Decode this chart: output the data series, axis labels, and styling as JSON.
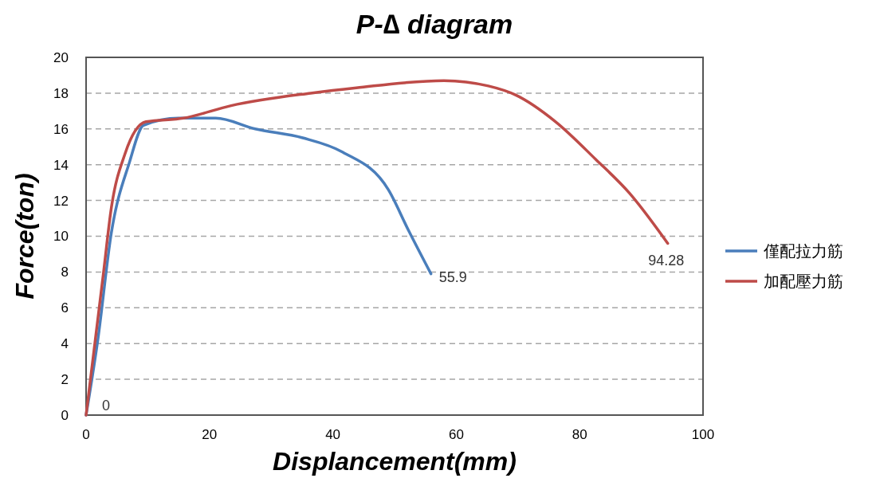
{
  "chart_data": {
    "type": "line",
    "title": "P-∆ diagram",
    "xlabel": "Displancement(mm)",
    "ylabel": "Force(ton)",
    "xlim": [
      0,
      100
    ],
    "xticks": [
      0,
      20,
      40,
      60,
      80,
      100
    ],
    "ylim": [
      0,
      20
    ],
    "yticks": [
      0,
      2,
      4,
      6,
      8,
      10,
      12,
      14,
      16,
      18,
      20
    ],
    "grid": "y",
    "legend": "right",
    "marker": "none",
    "line_style": "solid",
    "annotations": [
      {
        "text": "0",
        "x": 0,
        "y": 0
      },
      {
        "text": "55.9",
        "x": 55.9,
        "y": 7.9
      },
      {
        "text": "94.28",
        "x": 94.28,
        "y": 9.6
      }
    ],
    "series": [
      {
        "name": "僅配拉力筋",
        "color": "#4a7ebb",
        "x": [
          0,
          1.9,
          4.1,
          7.0,
          9.3,
          15,
          21,
          27.4,
          35.1,
          41.6,
          49.0,
          52.3,
          55.9
        ],
        "values": [
          0,
          4.2,
          10.2,
          14.1,
          16.2,
          16.6,
          16.6,
          16.0,
          15.5,
          14.7,
          12.6,
          10.3,
          7.9
        ]
      },
      {
        "name": "加配壓力筋",
        "color": "#be4b48",
        "x": [
          0,
          2.8,
          4.1,
          6.3,
          9.7,
          15.8,
          23.5,
          36.4,
          43.8,
          58.0,
          65.2,
          69.6,
          76.1,
          82.6,
          88.1,
          94.28
        ],
        "values": [
          0,
          7.9,
          11.6,
          14.6,
          16.4,
          16.6,
          17.3,
          18.0,
          18.3,
          18.7,
          18.4,
          17.9,
          16.4,
          14.3,
          12.4,
          9.6
        ]
      }
    ]
  }
}
